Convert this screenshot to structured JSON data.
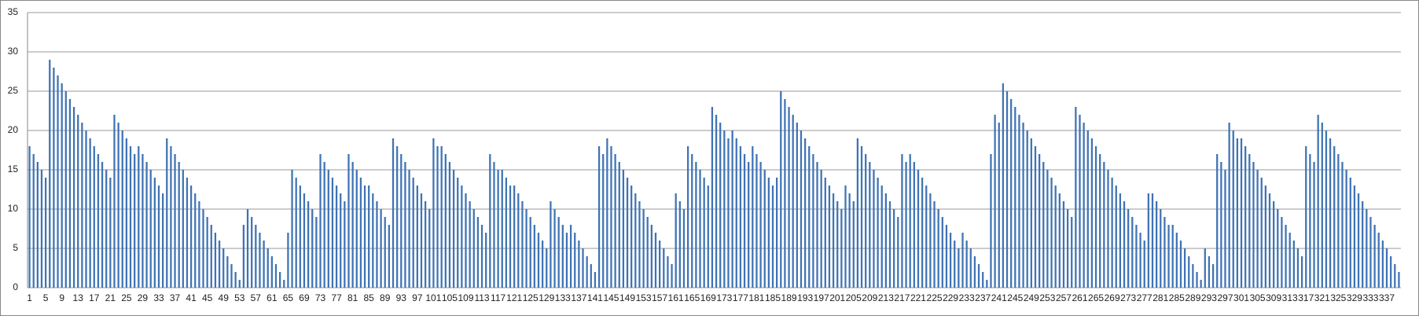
{
  "chart_data": {
    "type": "bar",
    "color": "#3f73b4",
    "grid": true,
    "ylim": [
      0,
      35
    ],
    "yticks": [
      0,
      5,
      10,
      15,
      20,
      25,
      30,
      35
    ],
    "categories": [
      1,
      null,
      null,
      null,
      5,
      null,
      null,
      null,
      9,
      null,
      null,
      null,
      13,
      null,
      null,
      null,
      17,
      null,
      null,
      null,
      21,
      null,
      null,
      null,
      25,
      null,
      null,
      null,
      29,
      null,
      null,
      null,
      33,
      null,
      null,
      null,
      37,
      null,
      null,
      null,
      41,
      null,
      null,
      null,
      45,
      null,
      null,
      null,
      49,
      null,
      null,
      null,
      53,
      null,
      null,
      null,
      57,
      null,
      null,
      null,
      61,
      null,
      null,
      null,
      65,
      null,
      null,
      null,
      69,
      null,
      null,
      null,
      73,
      null,
      null,
      null,
      77,
      null,
      null,
      null,
      81,
      null,
      null,
      null,
      85,
      null,
      null,
      null,
      89,
      null,
      null,
      null,
      93,
      null,
      null,
      null,
      97,
      null,
      null,
      null,
      101,
      null,
      null,
      null,
      105,
      null,
      null,
      null,
      109,
      null,
      null,
      null,
      113,
      null,
      null,
      null,
      117,
      null,
      null,
      null,
      121,
      null,
      null,
      null,
      125,
      null,
      null,
      null,
      129,
      null,
      null,
      null,
      133,
      null,
      null,
      null,
      137,
      null,
      null,
      null,
      141,
      null,
      null,
      null,
      145,
      null,
      null,
      null,
      149,
      null,
      null,
      null,
      153,
      null,
      null,
      null,
      157,
      null,
      null,
      null,
      161,
      null,
      null,
      null,
      165,
      null,
      null,
      null,
      169,
      null,
      null,
      null,
      173,
      null,
      null,
      null,
      177,
      null,
      null,
      null,
      181,
      null,
      null,
      null,
      185,
      null,
      null,
      null,
      189,
      null,
      null,
      null,
      193,
      null,
      null,
      null,
      197,
      null,
      null,
      null,
      201,
      null,
      null,
      null,
      205,
      null,
      null,
      null,
      209,
      null,
      null,
      null,
      213,
      null,
      null,
      null,
      217,
      null,
      null,
      null,
      221,
      null,
      null,
      null,
      225,
      null,
      null,
      null,
      229,
      null,
      null,
      null,
      233,
      null,
      null,
      null,
      237,
      null,
      null,
      null,
      241,
      null,
      null,
      null,
      245,
      null,
      null,
      null,
      249,
      null,
      null,
      null,
      253,
      null,
      null,
      null,
      257,
      null,
      null,
      null,
      261,
      null,
      null,
      null,
      265,
      null,
      null,
      null,
      269,
      null,
      null,
      null,
      273,
      null,
      null,
      null,
      277,
      null,
      null,
      null,
      281,
      null,
      null,
      null,
      285,
      null,
      null,
      null,
      289,
      null,
      null,
      null,
      293,
      null,
      null,
      null,
      297,
      null,
      null,
      null,
      301,
      null,
      null,
      null,
      305,
      null,
      null,
      null,
      309,
      null,
      null,
      null,
      313,
      null,
      null,
      null,
      317,
      null,
      null,
      null,
      321,
      null,
      null,
      null,
      325,
      null,
      null,
      null,
      329,
      null,
      null,
      null,
      333,
      null,
      null,
      null,
      337,
      null,
      null,
      null
    ],
    "values": [
      18,
      17,
      16,
      15,
      14,
      29,
      28,
      27,
      26,
      25,
      24,
      23,
      22,
      21,
      20,
      19,
      18,
      17,
      16,
      15,
      14,
      22,
      21,
      20,
      19,
      18,
      17,
      18,
      17,
      16,
      15,
      14,
      13,
      12,
      19,
      18,
      17,
      16,
      15,
      14,
      13,
      12,
      11,
      10,
      9,
      8,
      7,
      6,
      5,
      4,
      3,
      2,
      1,
      8,
      10,
      9,
      8,
      7,
      6,
      5,
      4,
      3,
      2,
      1,
      7,
      15,
      14,
      13,
      12,
      11,
      10,
      9,
      17,
      16,
      15,
      14,
      13,
      12,
      11,
      17,
      16,
      15,
      14,
      13,
      13,
      12,
      11,
      10,
      9,
      8,
      19,
      18,
      17,
      16,
      15,
      14,
      13,
      12,
      11,
      10,
      19,
      18,
      18,
      17,
      16,
      15,
      14,
      13,
      12,
      11,
      10,
      9,
      8,
      7,
      17,
      16,
      15,
      15,
      14,
      13,
      13,
      12,
      11,
      10,
      9,
      8,
      7,
      6,
      5,
      11,
      10,
      9,
      8,
      7,
      8,
      7,
      6,
      5,
      4,
      3,
      2,
      18,
      17,
      19,
      18,
      17,
      16,
      15,
      14,
      13,
      12,
      11,
      10,
      9,
      8,
      7,
      6,
      5,
      4,
      3,
      12,
      11,
      10,
      18,
      17,
      16,
      15,
      14,
      13,
      23,
      22,
      21,
      20,
      19,
      20,
      19,
      18,
      17,
      16,
      18,
      17,
      16,
      15,
      14,
      13,
      14,
      25,
      24,
      23,
      22,
      21,
      20,
      19,
      18,
      17,
      16,
      15,
      14,
      13,
      12,
      11,
      10,
      13,
      12,
      11,
      19,
      18,
      17,
      16,
      15,
      14,
      13,
      12,
      11,
      10,
      9,
      17,
      16,
      17,
      16,
      15,
      14,
      13,
      12,
      11,
      10,
      9,
      8,
      7,
      6,
      5,
      7,
      6,
      5,
      4,
      3,
      2,
      1,
      17,
      22,
      21,
      26,
      25,
      24,
      23,
      22,
      21,
      20,
      19,
      18,
      17,
      16,
      15,
      14,
      13,
      12,
      11,
      10,
      9,
      23,
      22,
      21,
      20,
      19,
      18,
      17,
      16,
      15,
      14,
      13,
      12,
      11,
      10,
      9,
      8,
      7,
      6,
      12,
      12,
      11,
      10,
      9,
      8,
      8,
      7,
      6,
      5,
      4,
      3,
      2,
      1,
      5,
      4,
      3,
      17,
      16,
      15,
      21,
      20,
      19,
      19,
      18,
      17,
      16,
      15,
      14,
      13,
      12,
      11,
      10,
      9,
      8,
      7,
      6,
      5,
      4,
      18,
      17,
      16,
      22,
      21,
      20,
      19,
      18,
      17,
      16,
      15,
      14,
      13,
      12,
      11,
      10,
      9,
      8,
      7,
      6,
      5,
      4,
      3,
      2
    ]
  }
}
